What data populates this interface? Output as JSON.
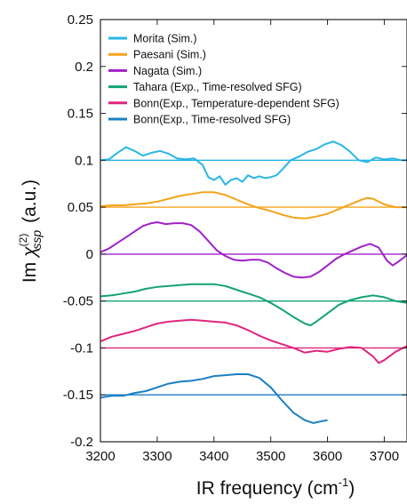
{
  "chart_data": {
    "type": "line",
    "xlabel": "IR frequency (cm",
    "xlabel_sup": "-1",
    "xlabel_end": ")",
    "ylabel_im": "Im",
    "ylabel_chi": "χ",
    "ylabel_order": "(2)",
    "ylabel_sub": "ssp",
    "ylabel_unit": "(a.u.)",
    "xlim": [
      3200,
      3740
    ],
    "ylim": [
      -0.2,
      0.25
    ],
    "xticks": [
      3200,
      3300,
      3400,
      3500,
      3600,
      3700
    ],
    "xtick_labels": [
      "3200",
      "3300",
      "3400",
      "3500",
      "3600",
      "3700"
    ],
    "yticks": [
      -0.2,
      -0.15,
      -0.1,
      -0.05,
      0,
      0.05,
      0.1,
      0.15,
      0.2,
      0.25
    ],
    "ytick_labels": [
      "-0.2",
      "-0.15",
      "-0.1",
      "-0.05",
      "0",
      "0.05",
      "0.1",
      "0.15",
      "0.2",
      "0.25"
    ],
    "grid": false,
    "legend_position": "top-left",
    "series": [
      {
        "name": "Morita (Sim.)",
        "color": "#29b6e6",
        "baseline": 0.1,
        "x": [
          3200,
          3215,
          3230,
          3245,
          3260,
          3275,
          3290,
          3305,
          3320,
          3335,
          3350,
          3365,
          3380,
          3390,
          3400,
          3410,
          3420,
          3430,
          3440,
          3450,
          3460,
          3470,
          3480,
          3490,
          3500,
          3510,
          3520,
          3535,
          3550,
          3565,
          3580,
          3595,
          3610,
          3625,
          3640,
          3655,
          3670,
          3685,
          3700,
          3715,
          3730,
          3740
        ],
        "values": [
          0.1,
          0.101,
          0.108,
          0.114,
          0.11,
          0.105,
          0.108,
          0.11,
          0.107,
          0.102,
          0.101,
          0.102,
          0.095,
          0.082,
          0.079,
          0.083,
          0.074,
          0.079,
          0.081,
          0.077,
          0.084,
          0.081,
          0.083,
          0.081,
          0.082,
          0.084,
          0.09,
          0.1,
          0.104,
          0.109,
          0.112,
          0.117,
          0.12,
          0.116,
          0.109,
          0.1,
          0.098,
          0.103,
          0.101,
          0.102,
          0.1,
          0.1
        ]
      },
      {
        "name": "Paesani (Sim.)",
        "color": "#f5a31a",
        "baseline": 0.05,
        "x": [
          3200,
          3220,
          3240,
          3260,
          3280,
          3300,
          3320,
          3340,
          3360,
          3380,
          3400,
          3420,
          3440,
          3460,
          3480,
          3500,
          3520,
          3540,
          3560,
          3580,
          3600,
          3620,
          3640,
          3660,
          3670,
          3680,
          3700,
          3720,
          3740
        ],
        "values": [
          0.051,
          0.052,
          0.052,
          0.053,
          0.054,
          0.056,
          0.059,
          0.062,
          0.064,
          0.066,
          0.066,
          0.063,
          0.058,
          0.053,
          0.049,
          0.046,
          0.042,
          0.039,
          0.038,
          0.04,
          0.043,
          0.048,
          0.053,
          0.058,
          0.06,
          0.059,
          0.053,
          0.05,
          0.05
        ]
      },
      {
        "name": "Nagata (Sim.)",
        "color": "#a020c8",
        "baseline": 0.0,
        "x": [
          3200,
          3215,
          3230,
          3245,
          3260,
          3275,
          3290,
          3300,
          3315,
          3330,
          3345,
          3360,
          3375,
          3390,
          3405,
          3420,
          3435,
          3450,
          3465,
          3480,
          3495,
          3510,
          3525,
          3540,
          3555,
          3570,
          3585,
          3600,
          3615,
          3630,
          3645,
          3660,
          3675,
          3690,
          3705,
          3715,
          3725,
          3740
        ],
        "values": [
          0.002,
          0.006,
          0.012,
          0.018,
          0.024,
          0.03,
          0.033,
          0.034,
          0.032,
          0.033,
          0.033,
          0.031,
          0.024,
          0.014,
          0.004,
          -0.002,
          -0.006,
          -0.007,
          -0.006,
          -0.006,
          -0.009,
          -0.015,
          -0.02,
          -0.024,
          -0.025,
          -0.024,
          -0.019,
          -0.012,
          -0.005,
          0.0,
          0.004,
          0.008,
          0.011,
          0.007,
          -0.007,
          -0.012,
          -0.008,
          -0.001
        ]
      },
      {
        "name": "Tahara (Exp., Time-resolved SFG)",
        "color": "#12a370",
        "baseline": -0.05,
        "x": [
          3200,
          3220,
          3240,
          3260,
          3280,
          3300,
          3320,
          3340,
          3360,
          3380,
          3400,
          3420,
          3440,
          3460,
          3480,
          3500,
          3520,
          3540,
          3560,
          3570,
          3580,
          3600,
          3620,
          3640,
          3660,
          3680,
          3700,
          3720,
          3740
        ],
        "values": [
          -0.045,
          -0.044,
          -0.042,
          -0.04,
          -0.037,
          -0.035,
          -0.034,
          -0.033,
          -0.032,
          -0.032,
          -0.032,
          -0.034,
          -0.038,
          -0.042,
          -0.046,
          -0.052,
          -0.059,
          -0.067,
          -0.074,
          -0.076,
          -0.072,
          -0.063,
          -0.054,
          -0.049,
          -0.046,
          -0.044,
          -0.046,
          -0.05,
          -0.052
        ]
      },
      {
        "name": "Bonn(Exp., Temperature-dependent SFG)",
        "color": "#e0257e",
        "baseline": -0.1,
        "x": [
          3200,
          3220,
          3240,
          3260,
          3280,
          3300,
          3320,
          3340,
          3360,
          3380,
          3400,
          3420,
          3440,
          3460,
          3480,
          3500,
          3520,
          3540,
          3560,
          3580,
          3600,
          3620,
          3640,
          3660,
          3680,
          3690,
          3700,
          3720,
          3740
        ],
        "values": [
          -0.093,
          -0.088,
          -0.085,
          -0.082,
          -0.078,
          -0.074,
          -0.072,
          -0.071,
          -0.07,
          -0.071,
          -0.072,
          -0.073,
          -0.076,
          -0.081,
          -0.087,
          -0.092,
          -0.096,
          -0.1,
          -0.105,
          -0.103,
          -0.104,
          -0.101,
          -0.099,
          -0.1,
          -0.109,
          -0.116,
          -0.113,
          -0.104,
          -0.098
        ]
      },
      {
        "name": "Bonn(Exp., Time-resolved SFG)",
        "color": "#1b7fc4",
        "baseline": -0.15,
        "x": [
          3200,
          3220,
          3240,
          3260,
          3280,
          3300,
          3320,
          3340,
          3360,
          3380,
          3400,
          3420,
          3440,
          3460,
          3480,
          3500,
          3520,
          3540,
          3560,
          3575,
          3590,
          3600
        ],
        "values": [
          -0.153,
          -0.151,
          -0.151,
          -0.148,
          -0.146,
          -0.142,
          -0.138,
          -0.136,
          -0.135,
          -0.133,
          -0.13,
          -0.129,
          -0.128,
          -0.128,
          -0.132,
          -0.142,
          -0.156,
          -0.169,
          -0.177,
          -0.18,
          -0.178,
          -0.177
        ]
      }
    ]
  }
}
